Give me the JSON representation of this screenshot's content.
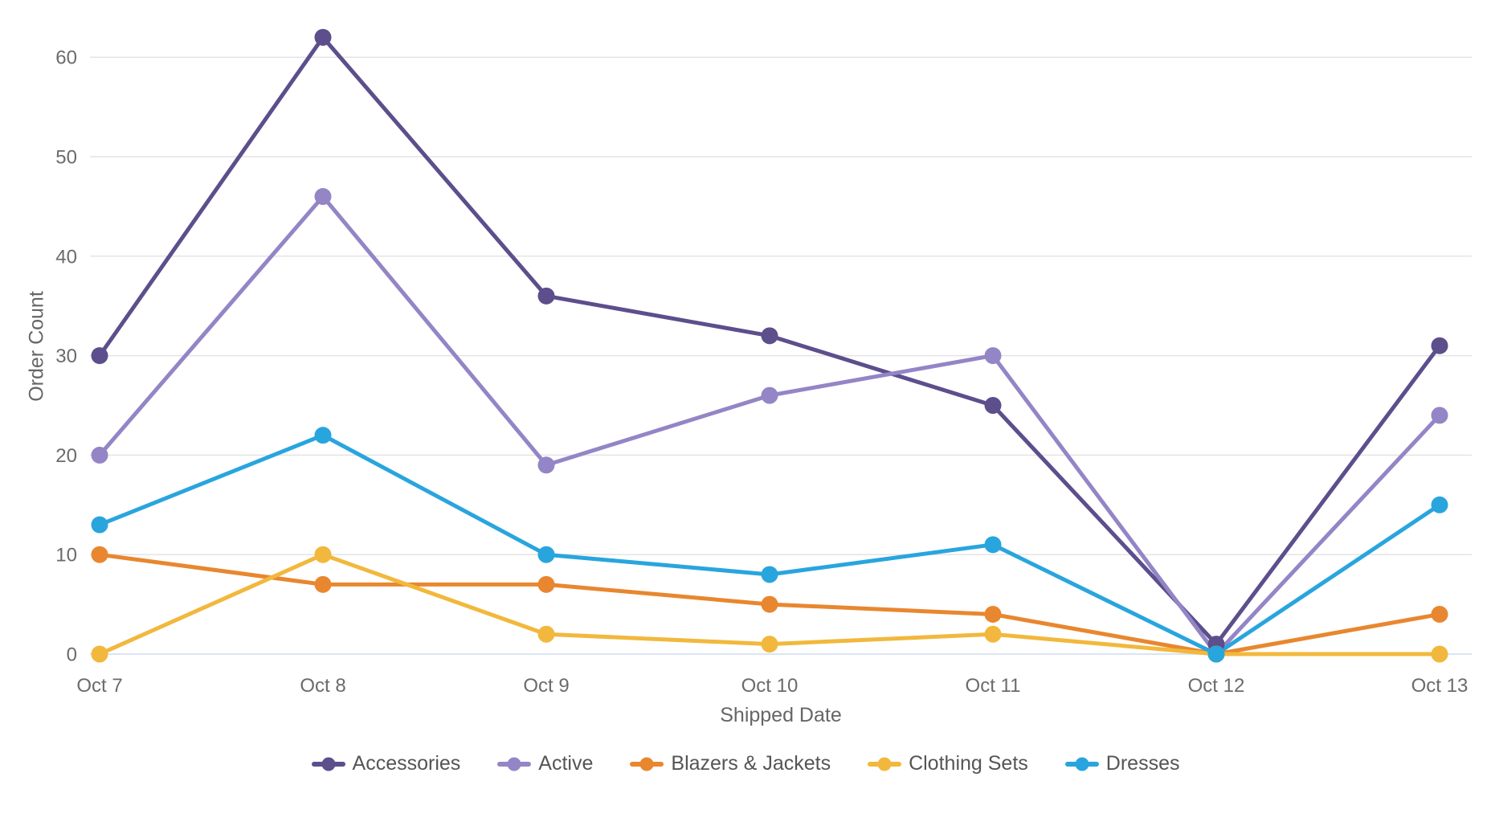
{
  "chart_data": {
    "type": "line",
    "title": "",
    "xlabel": "Shipped Date",
    "ylabel": "Order Count",
    "x": [
      "Oct 7",
      "Oct 8",
      "Oct 9",
      "Oct 10",
      "Oct 11",
      "Oct 12",
      "Oct 13"
    ],
    "yticks": [
      0,
      10,
      20,
      30,
      40,
      50,
      60
    ],
    "ylim": [
      0,
      65
    ],
    "grid": true,
    "legend_position": "bottom-center",
    "series": [
      {
        "name": "Accessories",
        "color": "#5D4E8C",
        "values": [
          30,
          62,
          36,
          32,
          25,
          1,
          31
        ]
      },
      {
        "name": "Active",
        "color": "#9485C6",
        "values": [
          20,
          46,
          19,
          26,
          30,
          0,
          24
        ]
      },
      {
        "name": "Blazers & Jackets",
        "color": "#E8872F",
        "values": [
          10,
          7,
          7,
          5,
          4,
          0,
          4
        ]
      },
      {
        "name": "Clothing Sets",
        "color": "#F2B83D",
        "values": [
          0,
          10,
          2,
          1,
          2,
          0,
          0
        ]
      },
      {
        "name": "Dresses",
        "color": "#29A5DE",
        "values": [
          13,
          22,
          10,
          8,
          11,
          0,
          15
        ]
      }
    ]
  },
  "style": {
    "tick_label_color": "#6b6b6b",
    "axis_title_color": "#666666",
    "grid_line_color": "#e4e4e4",
    "zero_line_color": "#dbe3f3"
  }
}
